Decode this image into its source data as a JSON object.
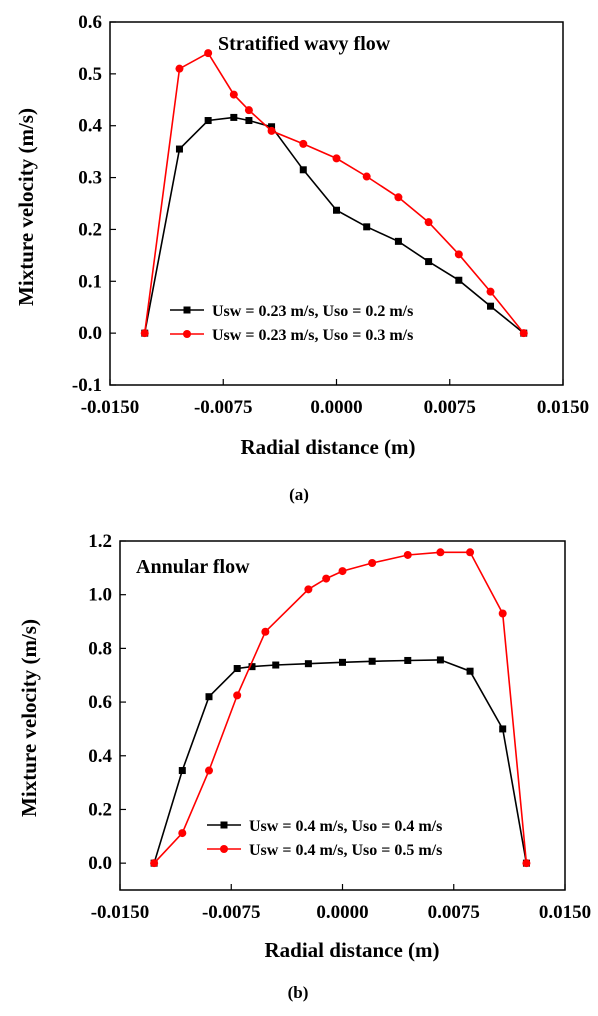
{
  "chart_data": [
    {
      "type": "line",
      "title": "Stratified wavy flow",
      "panel_label": "(a)",
      "xlabel": "Radial distance (m)",
      "ylabel": "Mixture velocity (m/s)",
      "xlim": [
        -0.015,
        0.015
      ],
      "ylim": [
        -0.1,
        0.6
      ],
      "xticks": [
        "-0.0150",
        "-0.0075",
        "0.0000",
        "0.0075",
        "0.0150"
      ],
      "yticks": [
        "-0.1",
        "0.0",
        "0.1",
        "0.2",
        "0.3",
        "0.4",
        "0.5",
        "0.6"
      ],
      "legend_position": "bottom-center",
      "series": [
        {
          "name": "Usw = 0.23 m/s, Uso = 0.2 m/s",
          "color": "#000000",
          "marker": "square",
          "x": [
            -0.0127,
            -0.0104,
            -0.0085,
            -0.0068,
            -0.0058,
            -0.0043,
            -0.0022,
            0.0,
            0.002,
            0.0041,
            0.0061,
            0.0081,
            0.0102,
            0.0124
          ],
          "y": [
            0.0,
            0.355,
            0.41,
            0.416,
            0.41,
            0.398,
            0.315,
            0.237,
            0.205,
            0.177,
            0.138,
            0.102,
            0.052,
            0.0
          ]
        },
        {
          "name": "Usw = 0.23 m/s, Uso = 0.3 m/s",
          "color": "#ff0000",
          "marker": "circle",
          "x": [
            -0.0127,
            -0.0104,
            -0.0085,
            -0.0068,
            -0.0058,
            -0.0043,
            -0.0022,
            0.0,
            0.002,
            0.0041,
            0.0061,
            0.0081,
            0.0102,
            0.0124
          ],
          "y": [
            0.0,
            0.51,
            0.54,
            0.46,
            0.43,
            0.39,
            0.365,
            0.337,
            0.302,
            0.262,
            0.214,
            0.152,
            0.08,
            0.0
          ]
        }
      ]
    },
    {
      "type": "line",
      "title": "Annular flow",
      "panel_label": "(b)",
      "xlabel": "Radial distance (m)",
      "ylabel": "Mixture velocity (m/s)",
      "xlim": [
        -0.015,
        0.015
      ],
      "ylim": [
        -0.1,
        1.2
      ],
      "xticks": [
        "-0.0150",
        "-0.0075",
        "0.0000",
        "0.0075",
        "0.0150"
      ],
      "yticks": [
        "0.0",
        "0.2",
        "0.4",
        "0.6",
        "0.8",
        "1.0",
        "1.2"
      ],
      "legend_position": "bottom-center",
      "series": [
        {
          "name": "Usw = 0.4 m/s, Uso = 0.4 m/s",
          "color": "#000000",
          "marker": "square",
          "x": [
            -0.0127,
            -0.0108,
            -0.009,
            -0.0071,
            -0.0061,
            -0.0045,
            -0.0023,
            0.0,
            0.002,
            0.0044,
            0.0066,
            0.0086,
            0.0108,
            0.0124
          ],
          "y": [
            0.0,
            0.345,
            0.62,
            0.725,
            0.732,
            0.738,
            0.743,
            0.748,
            0.752,
            0.755,
            0.757,
            0.715,
            0.5,
            0.0
          ]
        },
        {
          "name": "Usw = 0.4 m/s, Uso = 0.5 m/s",
          "color": "#ff0000",
          "marker": "circle",
          "x": [
            -0.0127,
            -0.0108,
            -0.009,
            -0.0071,
            -0.0052,
            -0.0023,
            -0.0011,
            0.0,
            0.002,
            0.0044,
            0.0066,
            0.0086,
            0.0108,
            0.0124
          ],
          "y": [
            0.0,
            0.112,
            0.345,
            0.625,
            0.862,
            1.02,
            1.06,
            1.088,
            1.118,
            1.148,
            1.158,
            1.158,
            0.93,
            0.0
          ]
        }
      ]
    }
  ]
}
